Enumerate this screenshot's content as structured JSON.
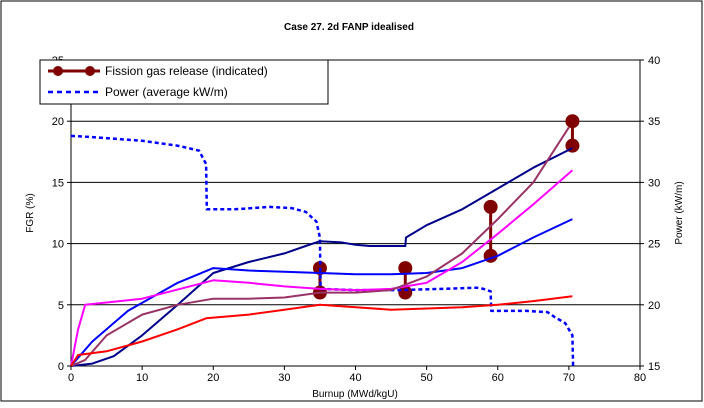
{
  "chart_data": {
    "type": "line",
    "title": "Case 27. 2d  FANP idealised",
    "xlabel": "Burnup (MWd/kgU)",
    "ylabel": "FGR (%)",
    "y2label": "Power (kW/m)",
    "xlim": [
      0,
      80
    ],
    "ylim": [
      0,
      25
    ],
    "y2lim": [
      15,
      40
    ],
    "x_ticks": [
      0,
      10,
      20,
      30,
      40,
      50,
      60,
      70,
      80
    ],
    "y_ticks": [
      0,
      5,
      10,
      15,
      20,
      25
    ],
    "y2_ticks": [
      15,
      20,
      25,
      30,
      35,
      40
    ],
    "grid": "horizontal",
    "legend_placement": "top-left",
    "legend": [
      {
        "label": "Fission gas release (indicated)",
        "color": "#800000",
        "style": "line-marker"
      },
      {
        "label": "Power (average kW/m)",
        "color": "#0000ff",
        "style": "dotted"
      }
    ],
    "series": [
      {
        "name": "Fission gas release (indicated)",
        "color": "#800000",
        "kind": "error-bars",
        "bars": [
          {
            "x": 35,
            "low": 6,
            "high": 8
          },
          {
            "x": 47,
            "low": 6,
            "high": 8
          },
          {
            "x": 59,
            "low": 9,
            "high": 13
          },
          {
            "x": 70.5,
            "low": 18,
            "high": 20
          }
        ]
      },
      {
        "name": "Power (average kW/m)",
        "color": "#0000ff",
        "axis": "right",
        "kind": "dotted",
        "x": [
          0,
          3,
          10,
          15,
          18,
          19,
          19.1,
          23,
          28,
          31,
          33,
          34.5,
          35,
          35.1,
          40,
          46,
          52,
          57,
          58,
          59,
          59.1,
          64,
          67,
          68,
          69.5,
          70.5,
          70.6
        ],
        "y": [
          33.8,
          33.7,
          33.4,
          33.0,
          32.6,
          31.5,
          27.8,
          27.8,
          28.0,
          27.9,
          27.6,
          26.8,
          25.5,
          21.3,
          21.2,
          21.2,
          21.3,
          21.4,
          21.3,
          21.1,
          19.5,
          19.5,
          19.4,
          19.0,
          18.5,
          17.5,
          15.0
        ]
      },
      {
        "name": "",
        "color": "#00008b",
        "x": [
          0,
          3,
          6,
          10,
          15,
          20,
          25,
          30,
          33,
          35,
          38,
          40,
          42,
          47,
          47.1,
          50,
          55,
          60,
          65,
          70.5
        ],
        "y": [
          0,
          0.2,
          0.8,
          2.5,
          5.0,
          7.6,
          8.5,
          9.2,
          9.8,
          10.2,
          10.1,
          9.9,
          9.8,
          9.8,
          10.5,
          11.5,
          12.8,
          14.5,
          16.2,
          17.8
        ]
      },
      {
        "name": "",
        "color": "#0000ff",
        "x": [
          0,
          3,
          8,
          15,
          20,
          25,
          30,
          35,
          40,
          45,
          50,
          55,
          60,
          65,
          70.5
        ],
        "y": [
          0,
          2.0,
          4.5,
          6.8,
          8.0,
          7.8,
          7.7,
          7.6,
          7.5,
          7.5,
          7.6,
          8.0,
          9.0,
          10.5,
          12.0
        ]
      },
      {
        "name": "",
        "color": "#ff00ff",
        "x": [
          0,
          1,
          2,
          10,
          20,
          25,
          30,
          35,
          40,
          45,
          50,
          55,
          60,
          65,
          70.5
        ],
        "y": [
          0,
          3.0,
          5.0,
          5.5,
          7.0,
          6.8,
          6.5,
          6.3,
          6.2,
          6.3,
          6.8,
          8.5,
          10.8,
          13.2,
          16.0
        ]
      },
      {
        "name": "",
        "color": "#993366",
        "x": [
          0,
          2,
          5,
          10,
          15,
          20,
          25,
          30,
          35,
          40,
          45,
          50,
          55,
          60,
          65,
          70
        ],
        "y": [
          0,
          0.5,
          2.5,
          4.2,
          5.0,
          5.5,
          5.5,
          5.6,
          6.0,
          6.0,
          6.2,
          7.3,
          9.2,
          12.0,
          15.0,
          19.5
        ]
      },
      {
        "name": "",
        "color": "#ff0000",
        "x": [
          0,
          1,
          5,
          10,
          15,
          19,
          25,
          30,
          35,
          40,
          45,
          50,
          55,
          60,
          65,
          70.5
        ],
        "y": [
          0,
          0.9,
          1.2,
          2.0,
          3.0,
          3.9,
          4.2,
          4.6,
          5.0,
          4.8,
          4.6,
          4.7,
          4.8,
          5.0,
          5.3,
          5.7
        ]
      }
    ]
  }
}
